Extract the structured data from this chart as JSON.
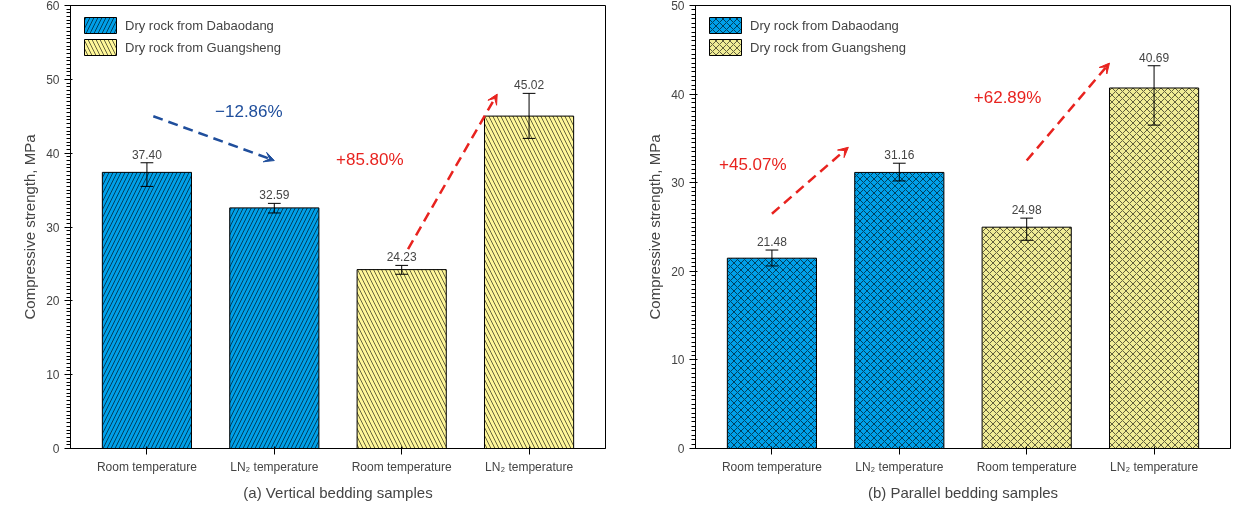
{
  "chart_data": [
    {
      "type": "bar",
      "title": "(a) Vertical bedding samples",
      "ylabel": "Compressive strength, MPa",
      "categories": [
        "Room temperature",
        "LN₂ temperature",
        "Room temperature",
        "LN₂ temperature"
      ],
      "series": [
        {
          "name": "Dry rock from Dabaodang",
          "color": "#00a0e9",
          "values": [
            37.4,
            32.59,
            null,
            null
          ],
          "value_labels": [
            "37.40",
            "32.59",
            null,
            null
          ],
          "errors": [
            [
              35.5,
              38.7
            ],
            [
              31.9,
              33.2
            ],
            null,
            null
          ]
        },
        {
          "name": "Dry rock from Guangsheng",
          "color": "#fff799",
          "values": [
            null,
            null,
            24.23,
            45.02
          ],
          "value_labels": [
            null,
            null,
            "24.23",
            "45.02"
          ],
          "errors": [
            null,
            null,
            [
              23.6,
              24.8
            ],
            [
              42.0,
              48.1
            ]
          ]
        }
      ],
      "ylim": [
        0,
        60
      ],
      "yticks": [
        0,
        10,
        20,
        30,
        40,
        50,
        60
      ],
      "legend": "top left",
      "annotations": [
        "−12.86%",
        "+85.80%"
      ]
    },
    {
      "type": "bar",
      "title": "(b) Parallel bedding samples",
      "ylabel": "Compressive strength, MPa",
      "categories": [
        "Room temperature",
        "LN₂ temperature",
        "Room temperature",
        "LN₂ temperature"
      ],
      "series": [
        {
          "name": "Dry rock from Dabaodang",
          "color": "#00a0e9",
          "values": [
            21.48,
            31.16,
            null,
            null
          ],
          "value_labels": [
            "21.48",
            "31.16",
            null,
            null
          ],
          "errors": [
            [
              20.6,
              22.4
            ],
            [
              30.2,
              32.2
            ],
            null,
            null
          ]
        },
        {
          "name": "Dry rock from Guangsheng",
          "color": "#f0ec96",
          "values": [
            null,
            null,
            24.98,
            40.69
          ],
          "value_labels": [
            null,
            null,
            "24.98",
            "40.69"
          ],
          "errors": [
            null,
            null,
            [
              23.5,
              26.0
            ],
            [
              36.5,
              43.2
            ]
          ]
        }
      ],
      "ylim": [
        0,
        50
      ],
      "yticks": [
        0,
        10,
        20,
        30,
        40,
        50
      ],
      "legend": "top left",
      "annotations": [
        "+45.07%",
        "+62.89%"
      ]
    }
  ]
}
